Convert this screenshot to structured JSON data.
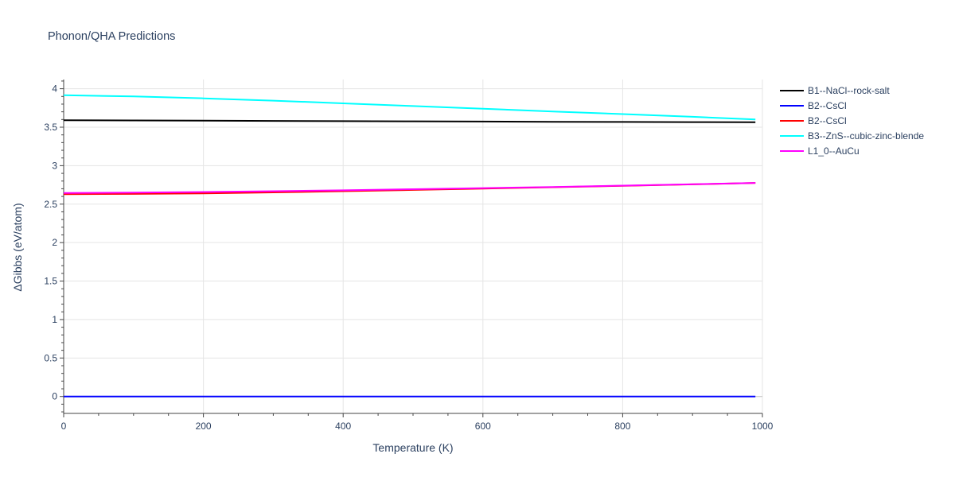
{
  "chart_data": {
    "type": "line",
    "title": "Phonon/QHA Predictions",
    "xlabel": "Temperature (K)",
    "ylabel": "ΔGibbs (eV/atom)",
    "xlim": [
      0,
      1000
    ],
    "ylim": [
      -0.22,
      4.12
    ],
    "xticks": [
      0,
      200,
      400,
      600,
      800,
      1000
    ],
    "xtick_labels": [
      "0",
      "200",
      "400",
      "600",
      "800",
      "1000"
    ],
    "yticks": [
      0,
      0.5,
      1,
      1.5,
      2,
      2.5,
      3,
      3.5,
      4
    ],
    "ytick_labels": [
      "0",
      "0.5",
      "1",
      "1.5",
      "2",
      "2.5",
      "3",
      "3.5",
      "4"
    ],
    "grid": true,
    "legend_position": "right",
    "series": [
      {
        "name": "B1--NaCl--rock-salt",
        "color": "#000000",
        "x": [
          0,
          100,
          200,
          300,
          400,
          500,
          600,
          700,
          800,
          900,
          990
        ],
        "y": [
          3.59,
          3.588,
          3.585,
          3.582,
          3.579,
          3.576,
          3.573,
          3.57,
          3.568,
          3.566,
          3.564
        ]
      },
      {
        "name": "B2--CsCl",
        "color": "#0000ff",
        "x": [
          0,
          100,
          200,
          300,
          400,
          500,
          600,
          700,
          800,
          900,
          990
        ],
        "y": [
          0,
          0,
          0,
          0,
          0,
          0,
          0,
          0,
          0,
          0,
          0
        ]
      },
      {
        "name": "B2--CsCl",
        "color": "#ff0000",
        "x": [
          0,
          100,
          200,
          300,
          400,
          500,
          600,
          700,
          800,
          900,
          990
        ],
        "y": [
          2.63,
          2.633,
          2.64,
          2.653,
          2.668,
          2.685,
          2.702,
          2.72,
          2.738,
          2.757,
          2.776
        ]
      },
      {
        "name": "B3--ZnS--cubic-zinc-blende",
        "color": "#00ffff",
        "x": [
          0,
          100,
          200,
          300,
          400,
          500,
          600,
          700,
          800,
          900,
          990
        ],
        "y": [
          3.915,
          3.9,
          3.875,
          3.845,
          3.81,
          3.775,
          3.74,
          3.705,
          3.67,
          3.635,
          3.6
        ]
      },
      {
        "name": "L1_0--AuCu",
        "color": "#ff00ff",
        "x": [
          0,
          100,
          200,
          300,
          400,
          500,
          600,
          700,
          800,
          900,
          990
        ],
        "y": [
          2.645,
          2.65,
          2.658,
          2.668,
          2.68,
          2.694,
          2.708,
          2.723,
          2.74,
          2.758,
          2.776
        ]
      }
    ]
  }
}
